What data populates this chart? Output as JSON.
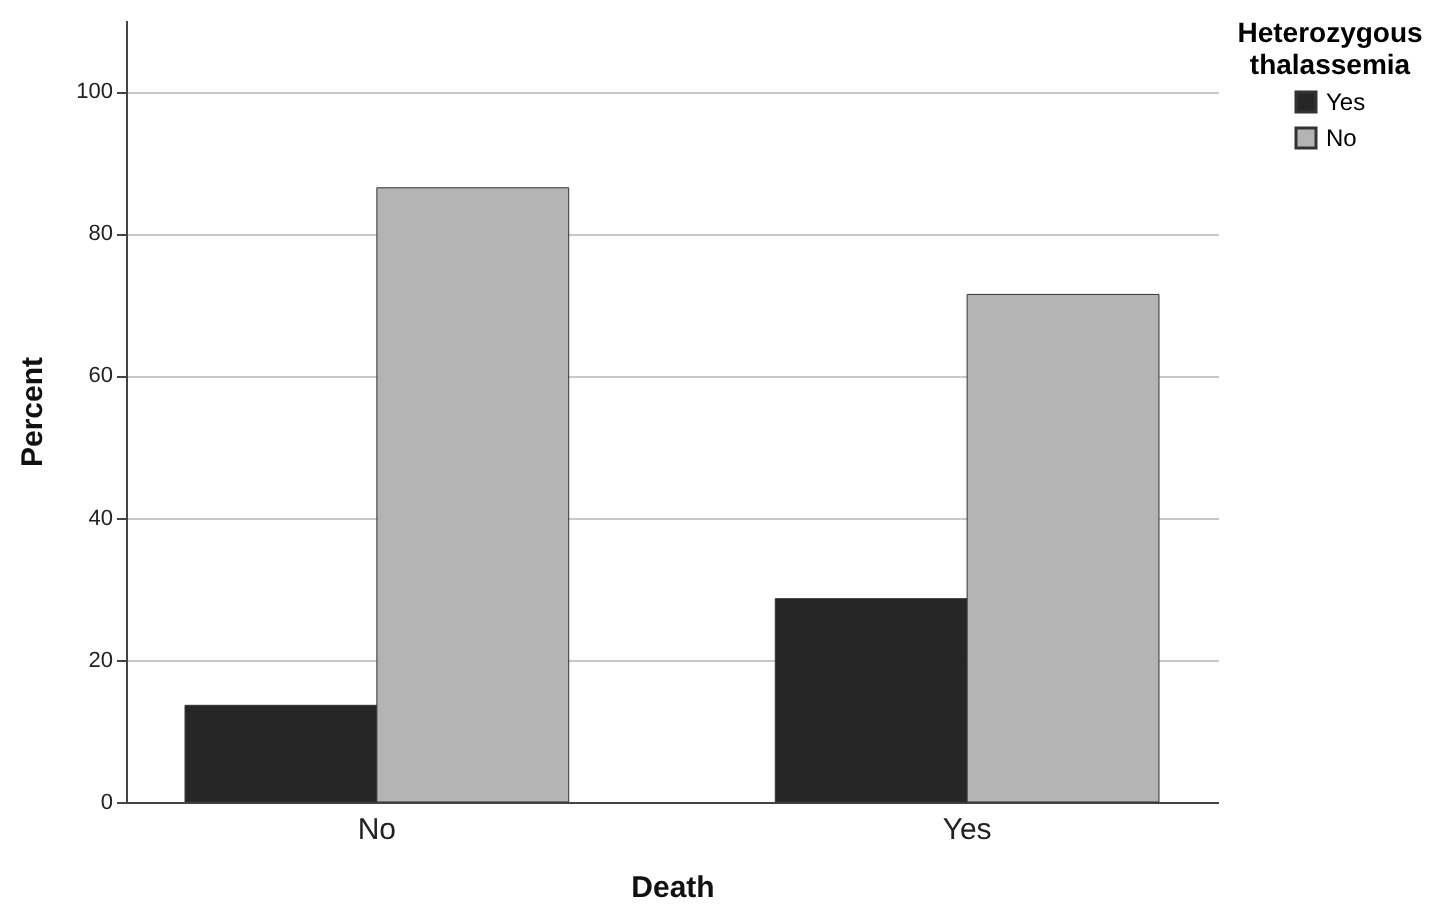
{
  "chart_data": {
    "type": "bar",
    "xlabel": "Death",
    "ylabel": "Percent",
    "legend_title": "Heterozygous thalassemia",
    "categories": [
      "No",
      "Yes"
    ],
    "series": [
      {
        "name": "Yes",
        "color": "#262626",
        "values": [
          13.6,
          28.6
        ]
      },
      {
        "name": "No",
        "color": "#b4b4b4",
        "values": [
          86.4,
          71.4
        ]
      }
    ],
    "ylim": [
      0,
      110
    ],
    "yticks": [
      0,
      20,
      40,
      60,
      80,
      100
    ],
    "grid": "y",
    "legend": "top right"
  }
}
